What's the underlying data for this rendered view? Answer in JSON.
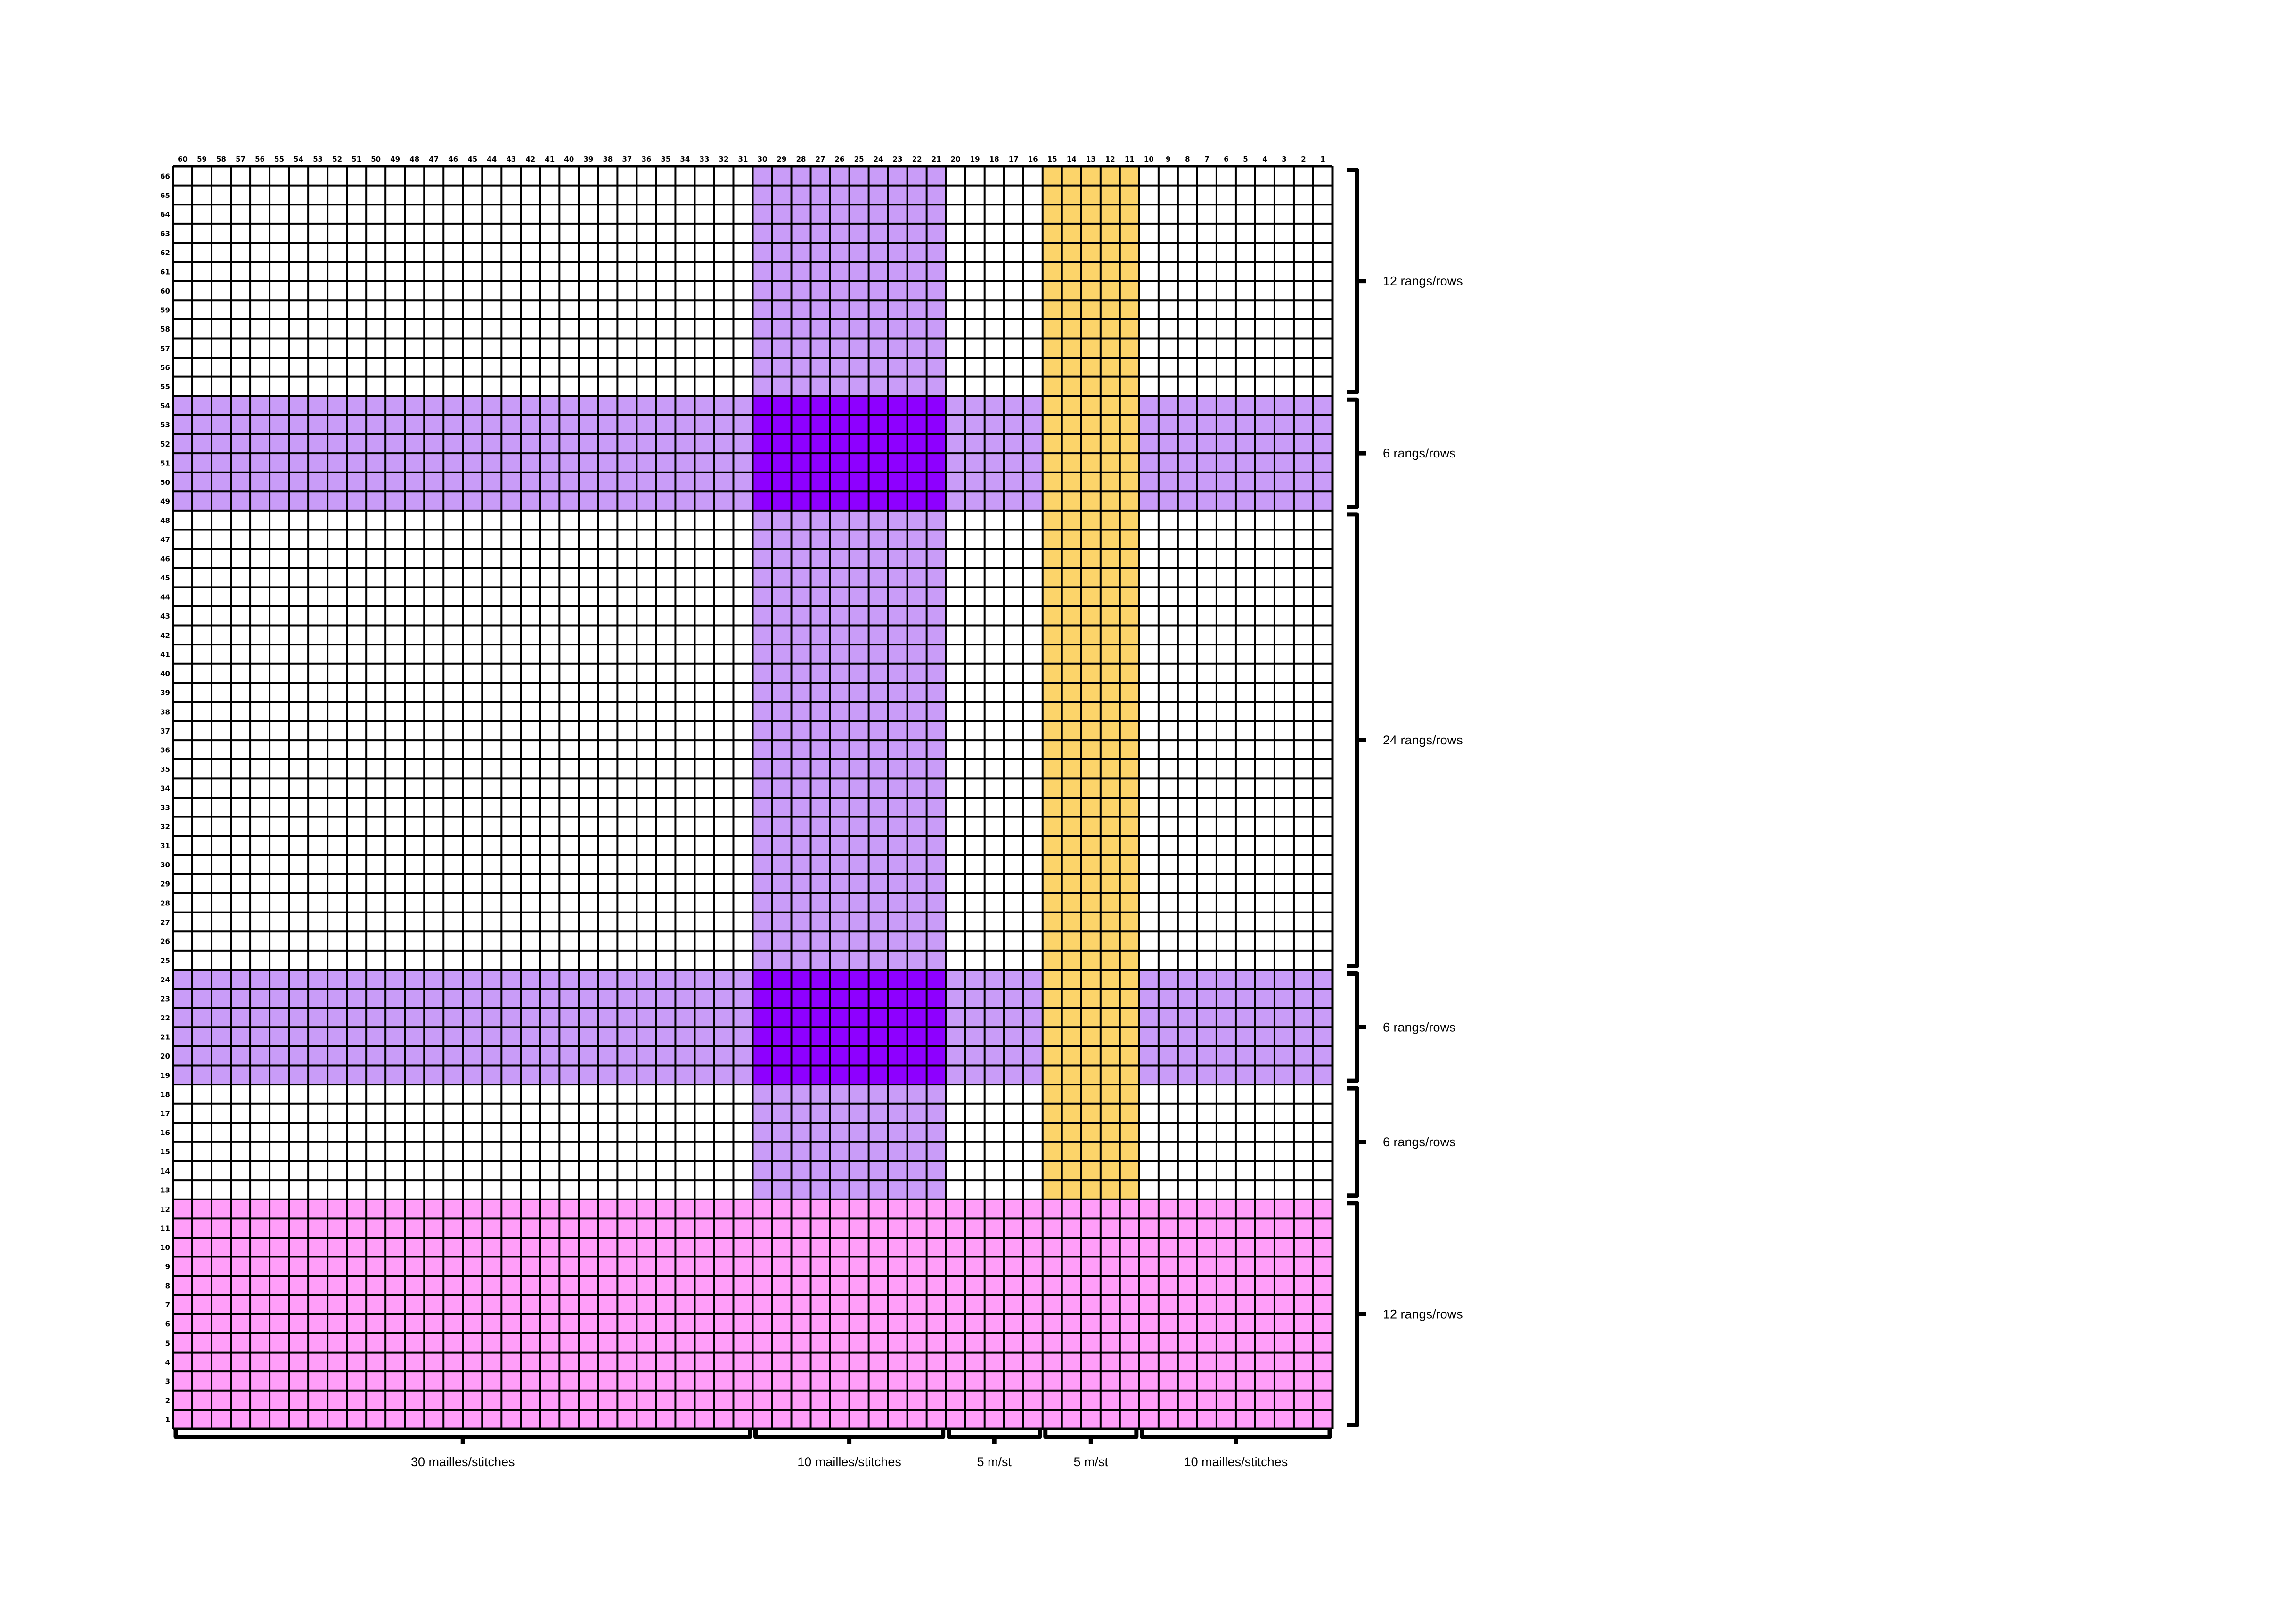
{
  "grid": {
    "columns": 60,
    "rows": 66,
    "column_numbering": "right-to-left",
    "row_numbering": "bottom-to-top",
    "base_color": "#ffffff",
    "line_color": "#000000"
  },
  "colors": {
    "light_purple": "#c99cf8",
    "dark_purple": "#8e00ff",
    "yellow": "#fcd46a",
    "pink": "#ff9ef9"
  },
  "regions": [
    {
      "name": "vertical-purple-stripe",
      "cols": [
        21,
        30
      ],
      "rows": [
        13,
        66
      ],
      "color": "light_purple"
    },
    {
      "name": "vertical-yellow-stripe",
      "cols": [
        11,
        15
      ],
      "rows": [
        13,
        66
      ],
      "color": "yellow"
    },
    {
      "name": "horizontal-purple-band-upper",
      "cols": [
        1,
        60
      ],
      "rows": [
        49,
        54
      ],
      "color": "light_purple"
    },
    {
      "name": "horizontal-purple-band-lower",
      "cols": [
        1,
        60
      ],
      "rows": [
        19,
        24
      ],
      "color": "light_purple"
    },
    {
      "name": "intersection-upper",
      "cols": [
        21,
        30
      ],
      "rows": [
        49,
        54
      ],
      "color": "dark_purple"
    },
    {
      "name": "intersection-lower",
      "cols": [
        21,
        30
      ],
      "rows": [
        19,
        24
      ],
      "color": "dark_purple"
    },
    {
      "name": "yellow-over-band-upper",
      "cols": [
        11,
        15
      ],
      "rows": [
        49,
        54
      ],
      "color": "yellow"
    },
    {
      "name": "yellow-over-band-lower",
      "cols": [
        11,
        15
      ],
      "rows": [
        19,
        24
      ],
      "color": "yellow"
    },
    {
      "name": "pink-border",
      "cols": [
        1,
        60
      ],
      "rows": [
        1,
        12
      ],
      "color": "pink"
    }
  ],
  "row_brackets": [
    {
      "rows": [
        55,
        66
      ],
      "label": "12 rangs/rows"
    },
    {
      "rows": [
        49,
        54
      ],
      "label": "6 rangs/rows"
    },
    {
      "rows": [
        25,
        48
      ],
      "label": "24 rangs/rows"
    },
    {
      "rows": [
        19,
        24
      ],
      "label": "6 rangs/rows"
    },
    {
      "rows": [
        13,
        18
      ],
      "label": "6 rangs/rows"
    },
    {
      "rows": [
        1,
        12
      ],
      "label": "12 rangs/rows"
    }
  ],
  "column_brackets": [
    {
      "cols": [
        31,
        60
      ],
      "label": "30 mailles/stitches"
    },
    {
      "cols": [
        21,
        30
      ],
      "label": "10 mailles/stitches"
    },
    {
      "cols": [
        16,
        20
      ],
      "label": "5 m/st"
    },
    {
      "cols": [
        11,
        15
      ],
      "label": "5 m/st"
    },
    {
      "cols": [
        1,
        10
      ],
      "label": "10 mailles/stitches"
    }
  ]
}
